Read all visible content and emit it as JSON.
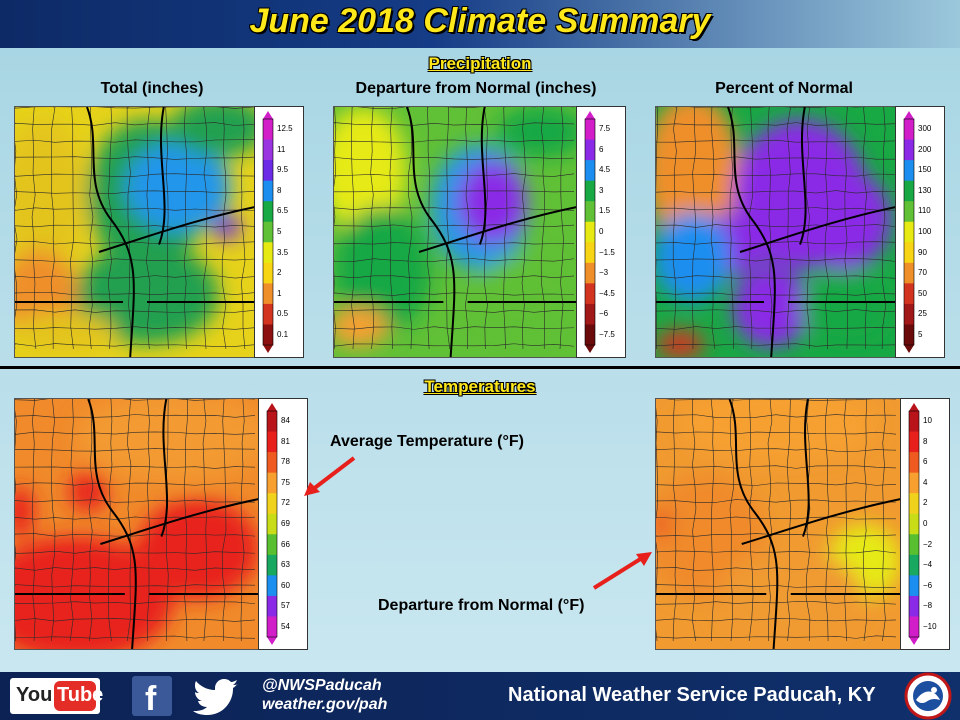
{
  "header": {
    "title": "June 2018 Climate Summary"
  },
  "sections": {
    "precipitation": "Precipitation",
    "temperatures": "Temperatures"
  },
  "precip_total": {
    "title": "Total  (inches)",
    "ticks": [
      "12.5",
      "11",
      "9.5",
      "8",
      "6.5",
      "5",
      "3.5",
      "2",
      "1",
      "0.5",
      "0.1"
    ],
    "colors": [
      "#d21ec8",
      "#9a34e0",
      "#6a2ae6",
      "#1c8ef0",
      "#18a844",
      "#60c036",
      "#e6ea12",
      "#f7d414",
      "#ef8f2a",
      "#d23420",
      "#8c1010"
    ]
  },
  "precip_departure": {
    "title": "Departure  from Normal  (inches)",
    "ticks": [
      "7.5",
      "6",
      "4.5",
      "3",
      "1.5",
      "0",
      "−1.5",
      "−3",
      "−4.5",
      "−6",
      "−7.5"
    ],
    "colors": [
      "#d21ec8",
      "#8a2ae6",
      "#1c8ef0",
      "#18a844",
      "#60c036",
      "#e6ea12",
      "#f7d414",
      "#ef8f2a",
      "#d23420",
      "#a01818",
      "#6a0a0a"
    ]
  },
  "precip_percent": {
    "title": "Percent of Normal",
    "ticks": [
      "300",
      "200",
      "150",
      "130",
      "110",
      "100",
      "90",
      "70",
      "50",
      "25",
      "5"
    ],
    "colors": [
      "#d21ec8",
      "#8a2ae6",
      "#1c8ef0",
      "#18a844",
      "#60c036",
      "#e6ea12",
      "#f7d414",
      "#ef8f2a",
      "#d23420",
      "#a01818",
      "#6a0a0a"
    ]
  },
  "temp_average": {
    "label": "Average Temperature  (°F)",
    "ticks": [
      "84",
      "81",
      "78",
      "75",
      "72",
      "69",
      "66",
      "63",
      "60",
      "57",
      "54"
    ],
    "colors": [
      "#b8141a",
      "#e8201c",
      "#ef5a20",
      "#f7a030",
      "#f0d21c",
      "#c8dc18",
      "#58c030",
      "#18a860",
      "#1c8ef0",
      "#8a2ae6",
      "#d21ec8"
    ]
  },
  "temp_departure": {
    "label": "Departure  from Normal  (°F)",
    "ticks": [
      "10",
      "8",
      "6",
      "4",
      "2",
      "0",
      "−2",
      "−4",
      "−6",
      "−8",
      "−10"
    ],
    "colors": [
      "#b8141a",
      "#e8201c",
      "#ef5a20",
      "#f7a030",
      "#f0d21c",
      "#c8dc18",
      "#58c030",
      "#18a860",
      "#1c8ef0",
      "#8a2ae6",
      "#d21ec8"
    ]
  },
  "footer": {
    "youtube_you": "You",
    "youtube_tube": "Tube",
    "facebook": "f",
    "handle": "@NWSPaducah",
    "site": "weather.gov/pah",
    "office": "National Weather Service Paducah, KY"
  },
  "icons": {
    "youtube": "youtube-icon",
    "facebook": "facebook-icon",
    "twitter": "twitter-icon",
    "nws": "nws-logo-icon"
  }
}
